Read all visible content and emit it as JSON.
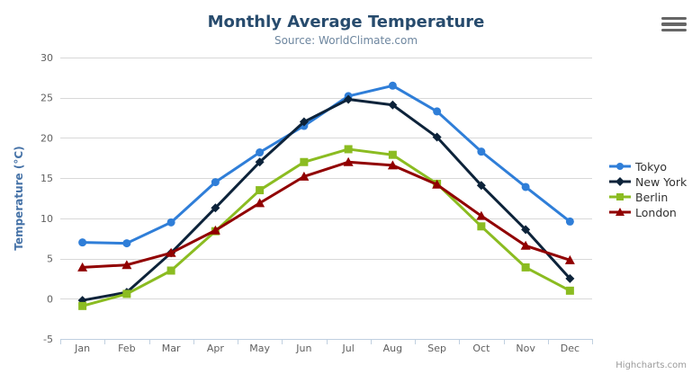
{
  "header": {
    "title": "Monthly Average Temperature",
    "subtitle": "Source: WorldClimate.com"
  },
  "credits": "Highcharts.com",
  "palette": {
    "title": "#274b6d",
    "subtitle": "#6D869F",
    "axis_label": "#606060",
    "axis_line": "#C0D0E0",
    "gridline": "#D8D8D8",
    "y_axis_title": "#4572A7",
    "legend_text": "#333333",
    "menu_icon": "#666666",
    "credits_text": "#999999",
    "background": "#ffffff"
  },
  "chart_data": {
    "type": "line",
    "title": "Monthly Average Temperature",
    "subtitle": "Source: WorldClimate.com",
    "xlabel": "",
    "ylabel": "Temperature (°C)",
    "ylim": [
      -5,
      30
    ],
    "yticks": [
      -5,
      0,
      5,
      10,
      15,
      20,
      25,
      30
    ],
    "grid": true,
    "legend_position": "right",
    "categories": [
      "Jan",
      "Feb",
      "Mar",
      "Apr",
      "May",
      "Jun",
      "Jul",
      "Aug",
      "Sep",
      "Oct",
      "Nov",
      "Dec"
    ],
    "series": [
      {
        "name": "Tokyo",
        "color": "#2f7ed8",
        "marker": "circle",
        "values": [
          7.0,
          6.9,
          9.5,
          14.5,
          18.2,
          21.5,
          25.2,
          26.5,
          23.3,
          18.3,
          13.9,
          9.6
        ]
      },
      {
        "name": "New York",
        "color": "#0d233a",
        "marker": "diamond",
        "values": [
          -0.2,
          0.8,
          5.7,
          11.3,
          17.0,
          22.0,
          24.8,
          24.1,
          20.1,
          14.1,
          8.6,
          2.5
        ]
      },
      {
        "name": "Berlin",
        "color": "#8bbc21",
        "marker": "square",
        "values": [
          -0.9,
          0.6,
          3.5,
          8.4,
          13.5,
          17.0,
          18.6,
          17.9,
          14.3,
          9.0,
          3.9,
          1.0
        ]
      },
      {
        "name": "London",
        "color": "#910000",
        "marker": "triangle",
        "values": [
          3.9,
          4.2,
          5.7,
          8.5,
          11.9,
          15.2,
          17.0,
          16.6,
          14.2,
          10.3,
          6.6,
          4.8
        ]
      }
    ]
  }
}
